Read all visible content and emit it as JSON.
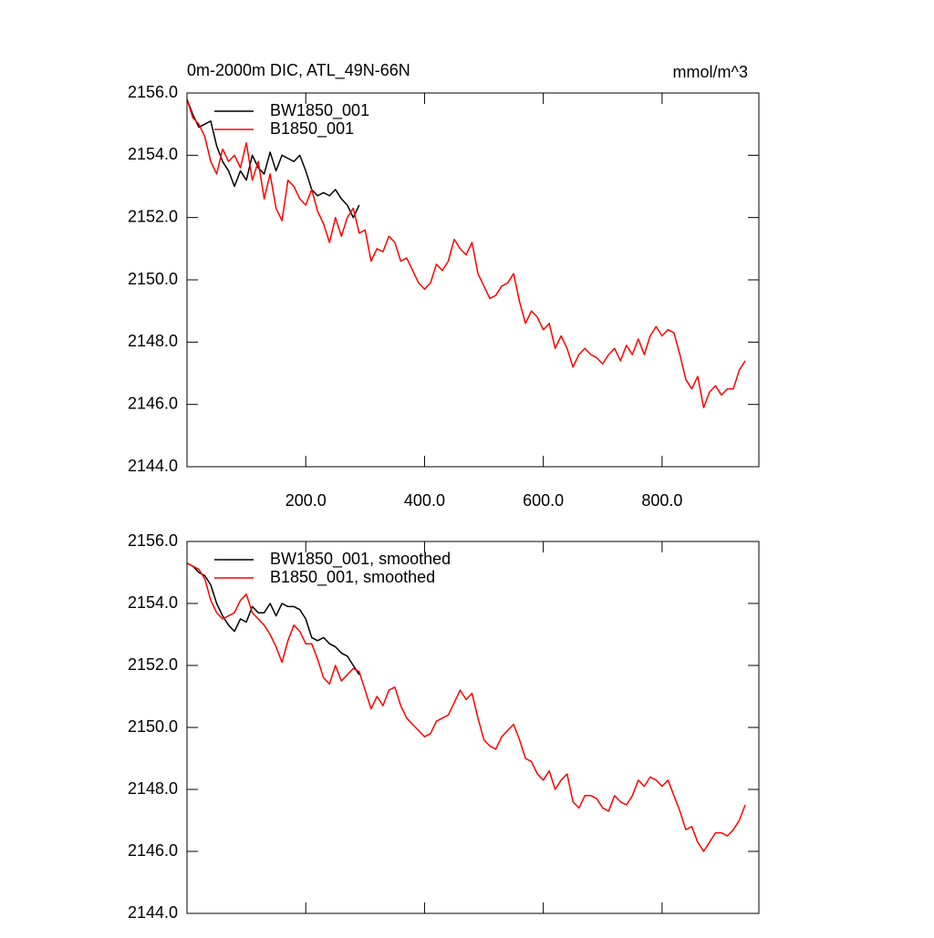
{
  "chart_data": [
    {
      "type": "line",
      "title": "0m-2000m DIC, ATL_49N-66N",
      "units": "mmol/m^3",
      "xlim": [
        0,
        963
      ],
      "ylim": [
        2144,
        2156
      ],
      "xticks": [
        {
          "value": 200,
          "label": "200.0"
        },
        {
          "value": 400,
          "label": "400.0"
        },
        {
          "value": 600,
          "label": "600.0"
        },
        {
          "value": 800,
          "label": "800.0"
        }
      ],
      "yticks": [
        {
          "value": 2144,
          "label": "2144.0"
        },
        {
          "value": 2146,
          "label": "2146.0"
        },
        {
          "value": 2148,
          "label": "2148.0"
        },
        {
          "value": 2150,
          "label": "2150.0"
        },
        {
          "value": 2152,
          "label": "2152.0"
        },
        {
          "value": 2154,
          "label": "2154.0"
        },
        {
          "value": 2156,
          "label": "2156.0"
        }
      ],
      "x": [
        0,
        10,
        20,
        30,
        40,
        50,
        60,
        70,
        80,
        90,
        100,
        110,
        120,
        130,
        140,
        150,
        160,
        170,
        180,
        190,
        200,
        210,
        220,
        230,
        240,
        250,
        260,
        270,
        280,
        290,
        300,
        310,
        320,
        330,
        340,
        350,
        360,
        370,
        380,
        390,
        400,
        410,
        420,
        430,
        440,
        450,
        460,
        470,
        480,
        490,
        500,
        510,
        520,
        530,
        540,
        550,
        560,
        570,
        580,
        590,
        600,
        610,
        620,
        630,
        640,
        650,
        660,
        670,
        680,
        690,
        700,
        710,
        720,
        730,
        740,
        750,
        760,
        770,
        780,
        790,
        800,
        810,
        820,
        830,
        840,
        850,
        860,
        870,
        880,
        890,
        900,
        910,
        920,
        930,
        940
      ],
      "series": [
        {
          "name": "BW1850_001",
          "color": "#000000",
          "values": [
            2155.8,
            2155.3,
            2154.9,
            2155.0,
            2155.1,
            2154.3,
            2153.8,
            2153.5,
            2153.0,
            2153.5,
            2153.2,
            2154.0,
            2153.6,
            2153.4,
            2154.1,
            2153.5,
            2154.0,
            2153.9,
            2153.8,
            2154.0,
            2153.5,
            2152.9,
            2152.7,
            2152.8,
            2152.7,
            2152.9,
            2152.6,
            2152.4,
            2152.0,
            2152.4,
            null,
            null,
            null,
            null,
            null,
            null,
            null,
            null,
            null,
            null,
            null,
            null,
            null,
            null,
            null,
            null,
            null,
            null,
            null,
            null,
            null,
            null,
            null,
            null,
            null,
            null,
            null,
            null,
            null,
            null,
            null,
            null,
            null,
            null,
            null,
            null,
            null,
            null,
            null,
            null,
            null,
            null,
            null,
            null,
            null,
            null,
            null,
            null,
            null,
            null,
            null,
            null,
            null,
            null,
            null,
            null,
            null,
            null,
            null,
            null,
            null,
            null,
            null,
            null,
            null
          ]
        },
        {
          "name": "B1850_001",
          "color": "#ff0000",
          "values": [
            2155.8,
            2155.2,
            2155.0,
            2154.6,
            2153.8,
            2153.4,
            2154.2,
            2153.8,
            2154.0,
            2153.6,
            2154.4,
            2153.2,
            2153.8,
            2152.6,
            2153.4,
            2152.3,
            2151.9,
            2153.2,
            2153.0,
            2152.6,
            2152.4,
            2152.9,
            2152.2,
            2151.8,
            2151.2,
            2152.0,
            2151.4,
            2152.0,
            2152.3,
            2151.5,
            2151.6,
            2150.6,
            2151.0,
            2150.9,
            2151.4,
            2151.2,
            2150.6,
            2150.7,
            2150.3,
            2149.9,
            2149.7,
            2149.9,
            2150.5,
            2150.3,
            2150.6,
            2151.3,
            2151.0,
            2150.8,
            2151.2,
            2150.2,
            2149.8,
            2149.4,
            2149.5,
            2149.8,
            2149.9,
            2150.2,
            2149.3,
            2148.6,
            2149.0,
            2148.8,
            2148.4,
            2148.6,
            2147.8,
            2148.2,
            2147.8,
            2147.2,
            2147.6,
            2147.8,
            2147.6,
            2147.5,
            2147.3,
            2147.6,
            2147.8,
            2147.4,
            2147.9,
            2147.6,
            2148.1,
            2147.6,
            2148.2,
            2148.5,
            2148.2,
            2148.4,
            2148.3,
            2147.6,
            2146.8,
            2146.5,
            2146.9,
            2145.9,
            2146.4,
            2146.6,
            2146.3,
            2146.5,
            2146.5,
            2147.1,
            2147.4
          ]
        }
      ]
    },
    {
      "type": "line",
      "xlim": [
        0,
        963
      ],
      "ylim": [
        2144,
        2156
      ],
      "xticks": [
        200,
        400,
        600,
        800
      ],
      "yticks": [
        {
          "value": 2144,
          "label": "2144.0"
        },
        {
          "value": 2146,
          "label": "2146.0"
        },
        {
          "value": 2148,
          "label": "2148.0"
        },
        {
          "value": 2150,
          "label": "2150.0"
        },
        {
          "value": 2152,
          "label": "2152.0"
        },
        {
          "value": 2154,
          "label": "2154.0"
        },
        {
          "value": 2156,
          "label": "2156.0"
        }
      ],
      "x": [
        0,
        10,
        20,
        30,
        40,
        50,
        60,
        70,
        80,
        90,
        100,
        110,
        120,
        130,
        140,
        150,
        160,
        170,
        180,
        190,
        200,
        210,
        220,
        230,
        240,
        250,
        260,
        270,
        280,
        290,
        300,
        310,
        320,
        330,
        340,
        350,
        360,
        370,
        380,
        390,
        400,
        410,
        420,
        430,
        440,
        450,
        460,
        470,
        480,
        490,
        500,
        510,
        520,
        530,
        540,
        550,
        560,
        570,
        580,
        590,
        600,
        610,
        620,
        630,
        640,
        650,
        660,
        670,
        680,
        690,
        700,
        710,
        720,
        730,
        740,
        750,
        760,
        770,
        780,
        790,
        800,
        810,
        820,
        830,
        840,
        850,
        860,
        870,
        880,
        890,
        900,
        910,
        920,
        930,
        940
      ],
      "series": [
        {
          "name": "BW1850_001, smoothed",
          "color": "#000000",
          "values": [
            2155.3,
            2155.2,
            2155.0,
            2154.9,
            2154.6,
            2154.0,
            2153.6,
            2153.3,
            2153.1,
            2153.5,
            2153.4,
            2153.9,
            2153.7,
            2153.7,
            2154.0,
            2153.6,
            2154.0,
            2153.9,
            2153.9,
            2153.8,
            2153.5,
            2152.9,
            2152.8,
            2152.9,
            2152.7,
            2152.6,
            2152.4,
            2152.3,
            2152.0,
            2151.7,
            null,
            null,
            null,
            null,
            null,
            null,
            null,
            null,
            null,
            null,
            null,
            null,
            null,
            null,
            null,
            null,
            null,
            null,
            null,
            null,
            null,
            null,
            null,
            null,
            null,
            null,
            null,
            null,
            null,
            null,
            null,
            null,
            null,
            null,
            null,
            null,
            null,
            null,
            null,
            null,
            null,
            null,
            null,
            null,
            null,
            null,
            null,
            null,
            null,
            null,
            null,
            null,
            null,
            null,
            null,
            null,
            null,
            null,
            null,
            null,
            null,
            null,
            null,
            null,
            null
          ]
        },
        {
          "name": "B1850_001, smoothed",
          "color": "#ff0000",
          "values": [
            2155.3,
            2155.2,
            2155.1,
            2154.8,
            2154.1,
            2153.7,
            2153.5,
            2153.6,
            2153.7,
            2154.1,
            2154.3,
            2153.7,
            2153.5,
            2153.3,
            2153.0,
            2152.6,
            2152.1,
            2152.8,
            2153.3,
            2153.1,
            2152.7,
            2152.7,
            2152.2,
            2151.6,
            2151.4,
            2152.0,
            2151.5,
            2151.7,
            2151.9,
            2151.8,
            2151.2,
            2150.6,
            2151.0,
            2150.7,
            2151.2,
            2151.3,
            2150.7,
            2150.3,
            2150.1,
            2149.9,
            2149.7,
            2149.8,
            2150.2,
            2150.3,
            2150.4,
            2150.8,
            2151.2,
            2150.9,
            2151.1,
            2150.3,
            2149.6,
            2149.4,
            2149.3,
            2149.7,
            2149.9,
            2150.1,
            2149.6,
            2149.0,
            2148.9,
            2148.5,
            2148.3,
            2148.6,
            2148.0,
            2148.3,
            2148.5,
            2147.6,
            2147.4,
            2147.8,
            2147.8,
            2147.7,
            2147.4,
            2147.3,
            2147.8,
            2147.6,
            2147.5,
            2147.8,
            2148.3,
            2148.1,
            2148.4,
            2148.3,
            2148.1,
            2148.3,
            2147.8,
            2147.3,
            2146.7,
            2146.8,
            2146.3,
            2146.0,
            2146.3,
            2146.6,
            2146.6,
            2146.5,
            2146.7,
            2147.0,
            2147.5
          ]
        }
      ]
    }
  ]
}
